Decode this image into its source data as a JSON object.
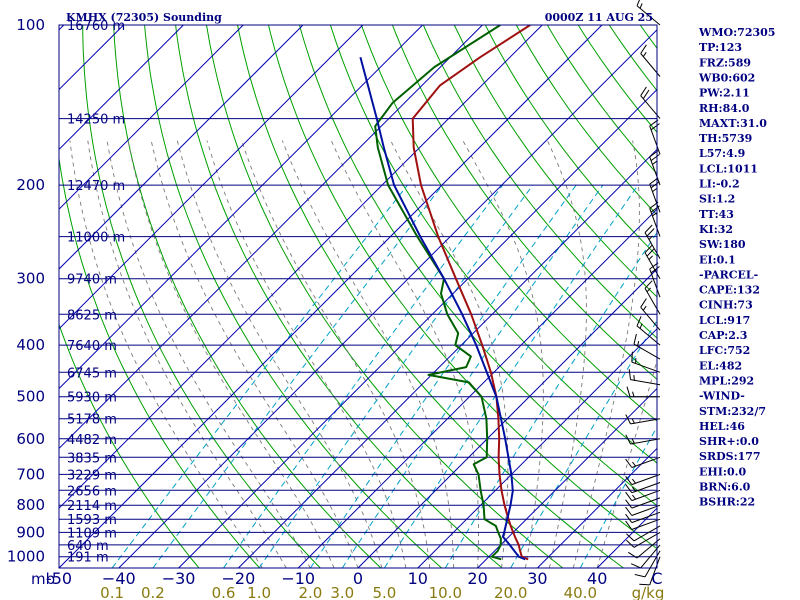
{
  "header": {
    "station": "KMHX (72305) Sounding",
    "time": "0000Z 11 AUG 25"
  },
  "chart_data": {
    "type": "line",
    "title": "KMHX (72305) Sounding",
    "pressure_levels": [
      100,
      200,
      300,
      400,
      500,
      600,
      700,
      800,
      900,
      1000
    ],
    "pressure_labels": [
      "100",
      "200",
      "300",
      "400",
      "500",
      "600",
      "700",
      "800",
      "900",
      "1000"
    ],
    "pressure_unit": "mb",
    "xlim": [
      -50,
      50
    ],
    "temp_ticks": [
      -50,
      -40,
      -30,
      -20,
      -10,
      0,
      10,
      20,
      30,
      40,
      50
    ],
    "temp_tick_labels": [
      "-50",
      "−40",
      "−30",
      "−20",
      "−10",
      "0",
      "10",
      "20",
      "30",
      "40",
      "C"
    ],
    "mixing_ratio_ticks": [
      0.1,
      0.2,
      0.6,
      1.0,
      2.0,
      3.0,
      5.0,
      10.0,
      20.0,
      40.0
    ],
    "mixing_ratio_labels": [
      "0.1",
      "0.2",
      "0.6",
      "1.0",
      "2.0",
      "3.0",
      "5.0",
      "10.0",
      "20.0",
      "40.0"
    ],
    "mixing_ratio_unit": "g/kg",
    "heights": [
      {
        "p": 100,
        "h": "16760 m"
      },
      {
        "p": 150,
        "h": "14250 m"
      },
      {
        "p": 200,
        "h": "12470 m"
      },
      {
        "p": 250,
        "h": "11000 m"
      },
      {
        "p": 300,
        "h": "9740 m"
      },
      {
        "p": 350,
        "h": "8625 m"
      },
      {
        "p": 400,
        "h": "7640 m"
      },
      {
        "p": 450,
        "h": "6745 m"
      },
      {
        "p": 500,
        "h": "5930 m"
      },
      {
        "p": 550,
        "h": "5178 m"
      },
      {
        "p": 600,
        "h": "4482 m"
      },
      {
        "p": 650,
        "h": "3835 m"
      },
      {
        "p": 700,
        "h": "3229 m"
      },
      {
        "p": 750,
        "h": "2656 m"
      },
      {
        "p": 800,
        "h": "2114 m"
      },
      {
        "p": 850,
        "h": "1593 m"
      },
      {
        "p": 900,
        "h": "1109 m"
      },
      {
        "p": 950,
        "h": "640 m"
      },
      {
        "p": 1000,
        "h": "191 m"
      }
    ],
    "series": [
      {
        "key": "temperature",
        "color": "#a01010",
        "points": [
          [
            1011,
            27.0
          ],
          [
            1000,
            25.5
          ],
          [
            970,
            24.0
          ],
          [
            950,
            23.0
          ],
          [
            925,
            21.5
          ],
          [
            900,
            20.0
          ],
          [
            875,
            18.5
          ],
          [
            850,
            17.0
          ],
          [
            800,
            14.0
          ],
          [
            750,
            11.0
          ],
          [
            700,
            8.0
          ],
          [
            650,
            5.0
          ],
          [
            600,
            2.0
          ],
          [
            550,
            -1.5
          ],
          [
            500,
            -5.5
          ],
          [
            450,
            -10.5
          ],
          [
            400,
            -16.5
          ],
          [
            350,
            -23.5
          ],
          [
            300,
            -32.0
          ],
          [
            250,
            -42.0
          ],
          [
            200,
            -53.5
          ],
          [
            170,
            -61.0
          ],
          [
            150,
            -66.0
          ],
          [
            130,
            -67.0
          ],
          [
            115,
            -65.0
          ],
          [
            100,
            -62.0
          ]
        ]
      },
      {
        "key": "dewpoint",
        "color": "#006000",
        "points": [
          [
            1011,
            22.5
          ],
          [
            1000,
            20.5
          ],
          [
            975,
            20.5
          ],
          [
            950,
            20.0
          ],
          [
            925,
            19.0
          ],
          [
            900,
            17.5
          ],
          [
            875,
            16.0
          ],
          [
            850,
            13.0
          ],
          [
            800,
            10.5
          ],
          [
            750,
            7.5
          ],
          [
            700,
            4.5
          ],
          [
            670,
            2.0
          ],
          [
            650,
            3.0
          ],
          [
            600,
            0.0
          ],
          [
            550,
            -3.5
          ],
          [
            500,
            -8.0
          ],
          [
            470,
            -12.5
          ],
          [
            455,
            -20.5
          ],
          [
            440,
            -15.5
          ],
          [
            420,
            -16.5
          ],
          [
            400,
            -21.0
          ],
          [
            380,
            -22.5
          ],
          [
            350,
            -27.5
          ],
          [
            320,
            -32.0
          ],
          [
            300,
            -34.0
          ],
          [
            250,
            -45.5
          ],
          [
            200,
            -59.0
          ],
          [
            170,
            -67.0
          ],
          [
            155,
            -71.0
          ],
          [
            140,
            -72.0
          ],
          [
            120,
            -71.0
          ],
          [
            100,
            -67.0
          ]
        ]
      },
      {
        "key": "parcel",
        "color": "#0010a0",
        "points": [
          [
            1011,
            26.5
          ],
          [
            1000,
            25.0
          ],
          [
            950,
            21.5
          ],
          [
            917,
            19.0
          ],
          [
            900,
            18.5
          ],
          [
            800,
            15.0
          ],
          [
            752,
            13.0
          ],
          [
            700,
            10.0
          ],
          [
            600,
            3.0
          ],
          [
            500,
            -5.5
          ],
          [
            482,
            -7.5
          ],
          [
            400,
            -17.5
          ],
          [
            350,
            -25.0
          ],
          [
            300,
            -34.0
          ],
          [
            250,
            -45.0
          ],
          [
            200,
            -58.0
          ],
          [
            170,
            -66.0
          ],
          [
            150,
            -72.0
          ],
          [
            130,
            -79.0
          ],
          [
            115,
            -85.0
          ]
        ]
      }
    ],
    "wind_barbs": [
      {
        "p": 1000,
        "dir": 200,
        "spd": 10
      },
      {
        "p": 975,
        "dir": 210,
        "spd": 10
      },
      {
        "p": 950,
        "dir": 220,
        "spd": 10
      },
      {
        "p": 925,
        "dir": 230,
        "spd": 10
      },
      {
        "p": 900,
        "dir": 240,
        "spd": 10
      },
      {
        "p": 875,
        "dir": 240,
        "spd": 10
      },
      {
        "p": 850,
        "dir": 250,
        "spd": 10
      },
      {
        "p": 825,
        "dir": 250,
        "spd": 10
      },
      {
        "p": 800,
        "dir": 250,
        "spd": 10
      },
      {
        "p": 775,
        "dir": 250,
        "spd": 10
      },
      {
        "p": 750,
        "dir": 250,
        "spd": 15
      },
      {
        "p": 725,
        "dir": 250,
        "spd": 15
      },
      {
        "p": 700,
        "dir": 250,
        "spd": 15
      },
      {
        "p": 650,
        "dir": 250,
        "spd": 15
      },
      {
        "p": 600,
        "dir": 260,
        "spd": 15
      },
      {
        "p": 550,
        "dir": 260,
        "spd": 15
      },
      {
        "p": 500,
        "dir": 270,
        "spd": 15
      },
      {
        "p": 475,
        "dir": 280,
        "spd": 15
      },
      {
        "p": 450,
        "dir": 290,
        "spd": 15
      },
      {
        "p": 425,
        "dir": 300,
        "spd": 15
      },
      {
        "p": 400,
        "dir": 310,
        "spd": 15
      },
      {
        "p": 375,
        "dir": 320,
        "spd": 15
      },
      {
        "p": 350,
        "dir": 330,
        "spd": 15
      },
      {
        "p": 325,
        "dir": 340,
        "spd": 20
      },
      {
        "p": 300,
        "dir": 330,
        "spd": 25
      },
      {
        "p": 275,
        "dir": 330,
        "spd": 25
      },
      {
        "p": 250,
        "dir": 340,
        "spd": 25
      },
      {
        "p": 225,
        "dir": 340,
        "spd": 25
      },
      {
        "p": 200,
        "dir": 340,
        "spd": 25
      },
      {
        "p": 175,
        "dir": 340,
        "spd": 20
      },
      {
        "p": 150,
        "dir": 320,
        "spd": 20
      },
      {
        "p": 125,
        "dir": 320,
        "spd": 15
      },
      {
        "p": 100,
        "dir": 310,
        "spd": 15
      }
    ]
  },
  "indices": [
    "WMO:72305",
    "TP:123",
    "FRZ:589",
    "WB0:602",
    "PW:2.11",
    "RH:84.0",
    "MAXT:31.0",
    "TH:5739",
    "L57:4.9",
    "LCL:1011",
    "LI:-0.2",
    "SI:1.2",
    "TT:43",
    "KI:32",
    "SW:180",
    "EI:0.1",
    "-PARCEL-",
    "CAPE:132",
    "CINH:73",
    "LCL:917",
    "CAP:2.3",
    "LFC:752",
    "EL:482",
    "MPL:292",
    "-WIND-",
    "STM:232/7",
    "HEL:46",
    "SHR+:0.0",
    "SRDS:177",
    "EHI:0.0",
    "BRN:6.0",
    "BSHR:22"
  ],
  "colors": {
    "axis": "#000080",
    "isobar": "#000080",
    "isotherm": "#0000b0",
    "dry_adiabat": "#00a000",
    "moist_adiabat": "#7a7a7a",
    "mixing_ratio": "#00a0c8",
    "mixing_label": "#8a7a10"
  }
}
